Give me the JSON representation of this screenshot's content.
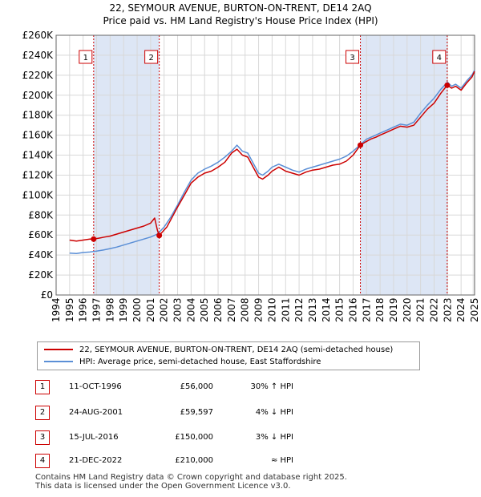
{
  "chart_data": {
    "type": "line",
    "title": "22, SEYMOUR AVENUE, BURTON-ON-TRENT, DE14 2AQ",
    "subtitle": "Price paid vs. HM Land Registry's House Price Index (HPI)",
    "xlim": [
      1994,
      2025
    ],
    "ylim": [
      0,
      260000
    ],
    "y_ticks": [
      0,
      20000,
      40000,
      60000,
      80000,
      100000,
      120000,
      140000,
      160000,
      180000,
      200000,
      220000,
      240000,
      260000
    ],
    "y_tick_labels": [
      "£0",
      "£20K",
      "£40K",
      "£60K",
      "£80K",
      "£100K",
      "£120K",
      "£140K",
      "£160K",
      "£180K",
      "£200K",
      "£220K",
      "£240K",
      "£260K"
    ],
    "x_ticks": [
      1994,
      1995,
      1996,
      1997,
      1998,
      1999,
      2000,
      2001,
      2002,
      2003,
      2004,
      2005,
      2006,
      2007,
      2008,
      2009,
      2010,
      2011,
      2012,
      2013,
      2014,
      2015,
      2016,
      2017,
      2018,
      2019,
      2020,
      2021,
      2022,
      2023,
      2024,
      2025
    ],
    "x_tick_labels": [
      "1994",
      "1995",
      "1996",
      "1997",
      "1998",
      "1999",
      "2000",
      "2001",
      "2002",
      "2003",
      "2004",
      "2005",
      "2006",
      "2007",
      "2008",
      "2009",
      "2010",
      "2011",
      "2012",
      "2013",
      "2014",
      "2015",
      "2016",
      "2017",
      "2018",
      "2019",
      "2020",
      "2021",
      "2022",
      "2023",
      "2024",
      "2025"
    ],
    "series": [
      {
        "name": "22, SEYMOUR AVENUE, BURTON-ON-TRENT, DE14 2AQ (semi-detached house)",
        "color": "#cc0000",
        "x": [
          1995.0,
          1995.5,
          1996.0,
          1996.5,
          1996.78,
          1997.2,
          1997.6,
          1998.0,
          1998.5,
          1999.0,
          1999.5,
          2000.0,
          2000.5,
          2001.0,
          2001.3,
          2001.5,
          2001.64,
          2001.8,
          2002.2,
          2002.6,
          2003.0,
          2003.5,
          2004.0,
          2004.5,
          2005.0,
          2005.5,
          2006.0,
          2006.5,
          2007.0,
          2007.4,
          2007.8,
          2008.2,
          2008.6,
          2009.0,
          2009.3,
          2009.7,
          2010.0,
          2010.5,
          2011.0,
          2011.5,
          2012.0,
          2012.5,
          2013.0,
          2013.5,
          2014.0,
          2014.5,
          2015.0,
          2015.5,
          2016.0,
          2016.54,
          2016.9,
          2017.3,
          2017.7,
          2018.0,
          2018.5,
          2019.0,
          2019.5,
          2020.0,
          2020.5,
          2021.0,
          2021.5,
          2022.0,
          2022.5,
          2022.97,
          2023.3,
          2023.6,
          2024.0,
          2024.4,
          2024.8,
          2025.0
        ],
        "y": [
          55000,
          54000,
          55000,
          56000,
          56000,
          57000,
          58000,
          59000,
          61000,
          63000,
          65000,
          67000,
          69000,
          72000,
          77000,
          65000,
          59597,
          62000,
          68000,
          78000,
          88000,
          100000,
          112000,
          118000,
          122000,
          124000,
          128000,
          133000,
          142000,
          146000,
          140000,
          138000,
          128000,
          118000,
          116000,
          120000,
          124000,
          128000,
          124000,
          122000,
          120000,
          123000,
          125000,
          126000,
          128000,
          130000,
          131000,
          134000,
          140000,
          150000,
          153000,
          156000,
          158000,
          160000,
          163000,
          166000,
          169000,
          168000,
          170000,
          178000,
          186000,
          192000,
          202000,
          210000,
          207000,
          209000,
          205000,
          212000,
          218000,
          224000
        ]
      },
      {
        "name": "HPI: Average price, semi-detached house, East Staffordshire",
        "color": "#5b8fd6",
        "x": [
          1995.0,
          1995.5,
          1996.0,
          1996.5,
          1997.0,
          1997.5,
          1998.0,
          1998.5,
          1999.0,
          1999.5,
          2000.0,
          2000.5,
          2001.0,
          2001.5,
          2002.0,
          2002.5,
          2003.0,
          2003.5,
          2004.0,
          2004.5,
          2005.0,
          2005.5,
          2006.0,
          2006.5,
          2007.0,
          2007.4,
          2007.8,
          2008.2,
          2008.6,
          2009.0,
          2009.3,
          2009.7,
          2010.0,
          2010.5,
          2011.0,
          2011.5,
          2012.0,
          2012.5,
          2013.0,
          2013.5,
          2014.0,
          2014.5,
          2015.0,
          2015.5,
          2016.0,
          2016.5,
          2017.0,
          2017.5,
          2018.0,
          2018.5,
          2019.0,
          2019.5,
          2020.0,
          2020.5,
          2021.0,
          2021.5,
          2022.0,
          2022.5,
          2023.0,
          2023.3,
          2023.6,
          2024.0,
          2024.4,
          2024.8,
          2025.0
        ],
        "y": [
          42000,
          41500,
          42500,
          43000,
          44000,
          45000,
          46500,
          48000,
          50000,
          52000,
          54000,
          56000,
          58000,
          61000,
          68000,
          78000,
          90000,
          103000,
          115000,
          122000,
          126000,
          129000,
          133000,
          138000,
          144000,
          150000,
          144000,
          142000,
          132000,
          122000,
          120000,
          124000,
          128000,
          131000,
          128000,
          125000,
          123000,
          126000,
          128000,
          130000,
          132000,
          134000,
          136000,
          139000,
          144000,
          150000,
          156000,
          159000,
          162000,
          165000,
          168000,
          171000,
          170000,
          173000,
          182000,
          190000,
          197000,
          206000,
          213000,
          209000,
          211000,
          207000,
          214000,
          220000,
          225000
        ]
      }
    ],
    "shaded_regions": [
      [
        1996.78,
        2001.64
      ],
      [
        2016.54,
        2022.97
      ]
    ],
    "sales": [
      {
        "num": "1",
        "x": 1996.78,
        "y": 56000
      },
      {
        "num": "2",
        "x": 2001.64,
        "y": 59597
      },
      {
        "num": "3",
        "x": 2016.54,
        "y": 150000
      },
      {
        "num": "4",
        "x": 2022.97,
        "y": 210000
      }
    ]
  },
  "legend": {
    "property_label": "22, SEYMOUR AVENUE, BURTON-ON-TRENT, DE14 2AQ (semi-detached house)",
    "hpi_label": "HPI: Average price, semi-detached house, East Staffordshire"
  },
  "table": [
    {
      "num": "1",
      "date": "11-OCT-1996",
      "price": "£56,000",
      "hpi": "30% ↑ HPI"
    },
    {
      "num": "2",
      "date": "24-AUG-2001",
      "price": "£59,597",
      "hpi": "4% ↓ HPI"
    },
    {
      "num": "3",
      "date": "15-JUL-2016",
      "price": "£150,000",
      "hpi": "3% ↓ HPI"
    },
    {
      "num": "4",
      "date": "21-DEC-2022",
      "price": "£210,000",
      "hpi": "≈ HPI"
    }
  ],
  "footer": {
    "line1": "Contains HM Land Registry data © Crown copyright and database right 2025.",
    "line2": "This data is licensed under the Open Government Licence v3.0."
  },
  "colors": {
    "property": "#cc0000",
    "hpi": "#5b8fd6",
    "shade": "#dde6f5",
    "grid": "#d8d8d8"
  }
}
